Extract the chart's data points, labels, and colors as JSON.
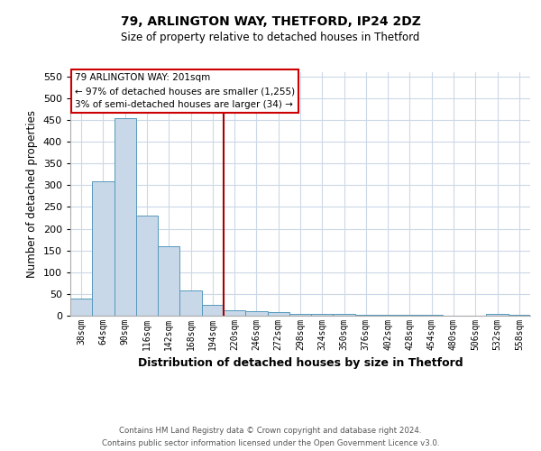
{
  "title1": "79, ARLINGTON WAY, THETFORD, IP24 2DZ",
  "title2": "Size of property relative to detached houses in Thetford",
  "xlabel": "Distribution of detached houses by size in Thetford",
  "ylabel": "Number of detached properties",
  "footnote1": "Contains HM Land Registry data © Crown copyright and database right 2024.",
  "footnote2": "Contains public sector information licensed under the Open Government Licence v3.0.",
  "bin_labels": [
    "38sqm",
    "64sqm",
    "90sqm",
    "116sqm",
    "142sqm",
    "168sqm",
    "194sqm",
    "220sqm",
    "246sqm",
    "272sqm",
    "298sqm",
    "324sqm",
    "350sqm",
    "376sqm",
    "402sqm",
    "428sqm",
    "454sqm",
    "480sqm",
    "506sqm",
    "532sqm",
    "558sqm"
  ],
  "bar_heights": [
    40,
    310,
    455,
    230,
    160,
    58,
    25,
    13,
    10,
    8,
    5,
    5,
    5,
    3,
    3,
    3,
    2,
    1,
    1,
    5,
    3
  ],
  "bar_color": "#c8d8e8",
  "bar_edge_color": "#5599bb",
  "ylim": [
    0,
    560
  ],
  "yticks": [
    0,
    50,
    100,
    150,
    200,
    250,
    300,
    350,
    400,
    450,
    500,
    550
  ],
  "vline_x": 6.5,
  "vline_color": "#aa0000",
  "annotation_title": "79 ARLINGTON WAY: 201sqm",
  "annotation_line1": "← 97% of detached houses are smaller (1,255)",
  "annotation_line2": "3% of semi-detached houses are larger (34) →",
  "annotation_box_color": "#ffffff",
  "annotation_box_edge": "#cc0000",
  "background_color": "#ffffff",
  "grid_color": "#ccd8e8"
}
